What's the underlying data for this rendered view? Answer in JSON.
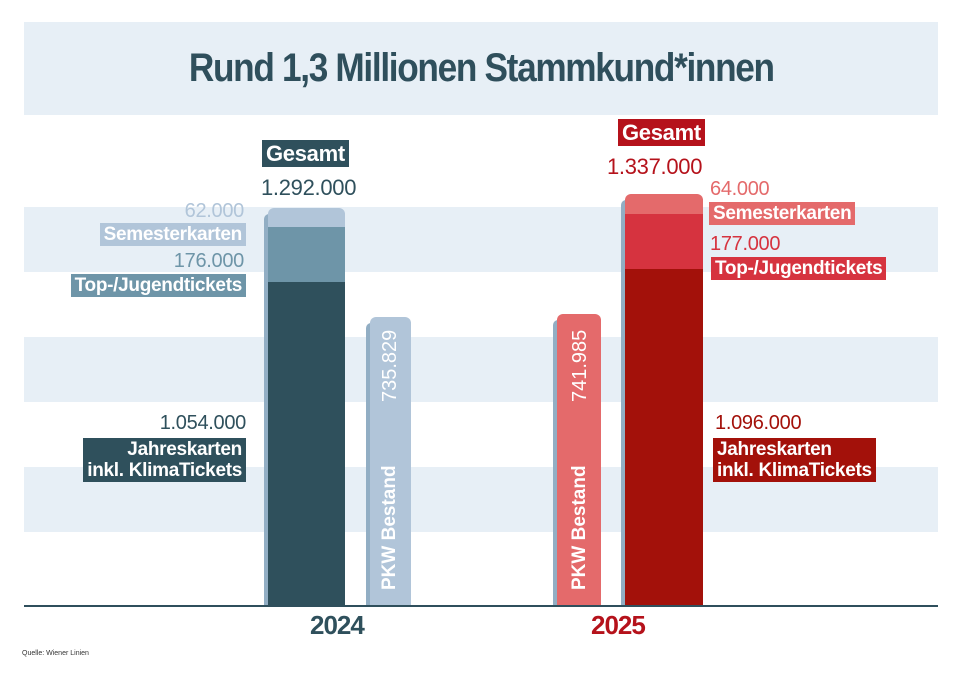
{
  "chart_data": {
    "type": "bar",
    "title": "Rund 1,3 Millionen Stammkund*innen",
    "source": "Quelle: Wiener Linien",
    "categories": [
      "2024",
      "2025"
    ],
    "total_label": "Gesamt",
    "totals": [
      "1.292.000",
      "1.337.000"
    ],
    "totals_values": [
      1292000,
      1337000
    ],
    "stacked_series": [
      {
        "name": "Jahreskarten inkl. KlimaTickets",
        "line1": "Jahreskarten",
        "line2": "inkl. KlimaTickets",
        "values": [
          1054000,
          1096000
        ],
        "labels": [
          "1.054.000",
          "1.096.000"
        ],
        "colors": [
          "#2f505c",
          "#a3110a"
        ]
      },
      {
        "name": "Top-/Jugendtickets",
        "values": [
          176000,
          177000
        ],
        "labels": [
          "176.000",
          "177.000"
        ],
        "colors": [
          "#6e95a8",
          "#d6333f"
        ]
      },
      {
        "name": "Semesterkarten",
        "values": [
          62000,
          64000
        ],
        "labels": [
          "62.000",
          "64.000"
        ],
        "colors": [
          "#b1c5d9",
          "#e46a6b"
        ]
      }
    ],
    "comparison_series": {
      "name": "PKW Bestand",
      "values": [
        735829,
        741985
      ],
      "labels": [
        "735.829",
        "741.985"
      ],
      "colors": [
        "#b1c5d9",
        "#e46a6b"
      ]
    },
    "year_colors": [
      "#2f505c",
      "#b5121b"
    ],
    "grid": false
  }
}
